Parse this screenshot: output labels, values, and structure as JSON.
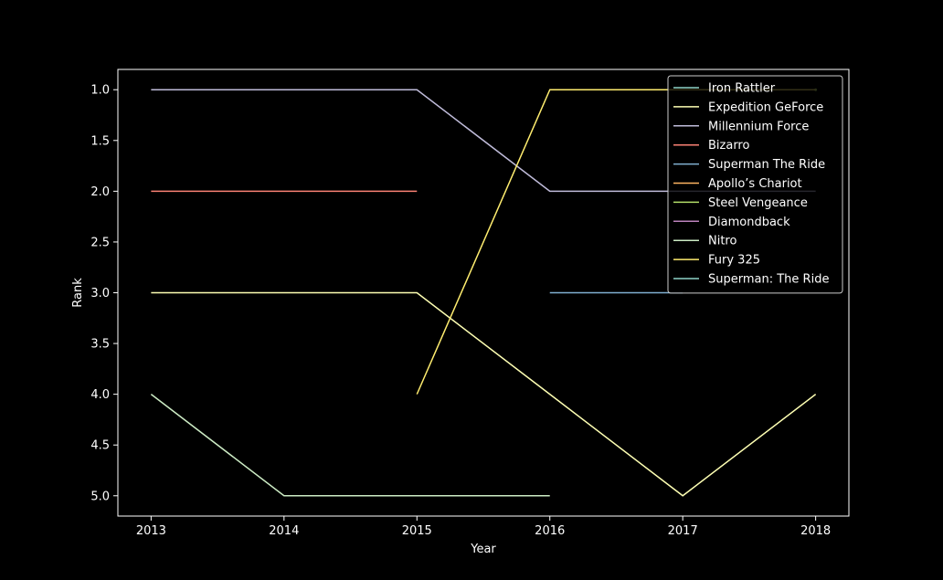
{
  "chart_data": {
    "type": "line",
    "title": "",
    "xlabel": "Year",
    "ylabel": "Rank",
    "x": [
      2013,
      2014,
      2015,
      2016,
      2017,
      2018
    ],
    "xlim": [
      2012.75,
      2018.25
    ],
    "ylim": [
      5.2,
      0.8
    ],
    "y_inverted": true,
    "yticks": [
      1.0,
      1.5,
      2.0,
      2.5,
      3.0,
      3.5,
      4.0,
      4.5,
      5.0
    ],
    "ytick_labels": [
      "1.0",
      "1.5",
      "2.0",
      "2.5",
      "3.0",
      "3.5",
      "4.0",
      "4.5",
      "5.0"
    ],
    "xtick_labels": [
      "2013",
      "2014",
      "2015",
      "2016",
      "2017",
      "2018"
    ],
    "grid": false,
    "legend_position": "top-right",
    "background": "#000000",
    "series": [
      {
        "name": "Iron Rattler",
        "color": "#8dd3c7",
        "values": [
          null,
          null,
          null,
          null,
          null,
          null
        ]
      },
      {
        "name": "Expedition GeForce",
        "color": "#feffb3",
        "values": [
          3,
          3,
          3,
          4,
          5,
          4
        ]
      },
      {
        "name": "Millennium Force",
        "color": "#bfbbd9",
        "values": [
          1,
          1,
          1,
          2,
          2,
          2
        ]
      },
      {
        "name": "Bizarro",
        "color": "#fa8174",
        "values": [
          2,
          2,
          2,
          null,
          null,
          null
        ]
      },
      {
        "name": "Superman The Ride",
        "color": "#81b1d2",
        "values": [
          null,
          null,
          null,
          3,
          3,
          null
        ]
      },
      {
        "name": "Apollo’s Chariot",
        "color": "#fdb462",
        "values": [
          null,
          null,
          null,
          null,
          null,
          null
        ]
      },
      {
        "name": "Steel Vengeance",
        "color": "#b3de69",
        "values": [
          null,
          null,
          null,
          null,
          null,
          1
        ]
      },
      {
        "name": "Diamondback",
        "color": "#bc82bd",
        "values": [
          null,
          null,
          null,
          null,
          null,
          null
        ]
      },
      {
        "name": "Nitro",
        "color": "#ccebc4",
        "values": [
          4,
          5,
          5,
          5,
          null,
          null
        ]
      },
      {
        "name": "Fury 325",
        "color": "#ffed6f",
        "values": [
          null,
          null,
          4,
          1,
          1,
          1
        ]
      },
      {
        "name": "Superman: The Ride",
        "color": "#8dd3c7",
        "values": [
          null,
          null,
          null,
          null,
          null,
          null
        ]
      }
    ]
  }
}
